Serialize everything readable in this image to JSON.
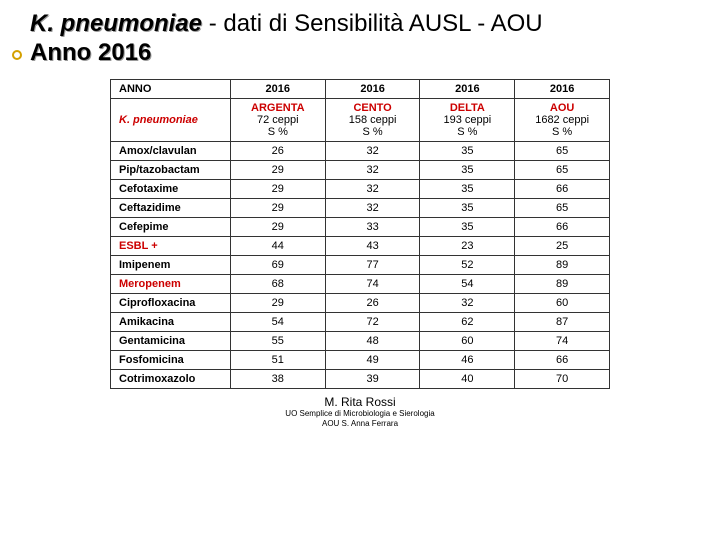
{
  "title": {
    "organism": "K. pneumoniae",
    "rest": " - dati di Sensibilità AUSL - AOU",
    "year_line": "Anno 2016"
  },
  "table": {
    "header": {
      "anno_label": "ANNO",
      "years": [
        "2016",
        "2016",
        "2016",
        "2016"
      ],
      "organism": "K. pneumoniae",
      "sites": [
        {
          "name": "ARGENTA",
          "ceppi": "72 ceppi",
          "s": "S %",
          "color": "#cc0000"
        },
        {
          "name": "CENTO",
          "ceppi": "158 ceppi",
          "s": "S %",
          "color": "#cc0000"
        },
        {
          "name": "DELTA",
          "ceppi": "193 ceppi",
          "s": "S %",
          "color": "#cc0000"
        },
        {
          "name": "AOU",
          "ceppi": "1682 ceppi",
          "s": "S %",
          "color": "#cc0000"
        }
      ]
    },
    "rows": [
      {
        "label": "Amox/clavulan",
        "color": "#000000",
        "values": [
          "26",
          "32",
          "35",
          "65"
        ]
      },
      {
        "label": "Pip/tazobactam",
        "color": "#000000",
        "values": [
          "29",
          "32",
          "35",
          "65"
        ]
      },
      {
        "label": "Cefotaxime",
        "color": "#000000",
        "values": [
          "29",
          "32",
          "35",
          "66"
        ]
      },
      {
        "label": "Ceftazidime",
        "color": "#000000",
        "values": [
          "29",
          "32",
          "35",
          "65"
        ]
      },
      {
        "label": "Cefepime",
        "color": "#000000",
        "values": [
          "29",
          "33",
          "35",
          "66"
        ]
      },
      {
        "label": "ESBL +",
        "color": "#cc0000",
        "values": [
          "44",
          "43",
          "23",
          "25"
        ]
      },
      {
        "label": "Imipenem",
        "color": "#000000",
        "values": [
          "69",
          "77",
          "52",
          "89"
        ]
      },
      {
        "label": "Meropenem",
        "color": "#cc0000",
        "values": [
          "68",
          "74",
          "54",
          "89"
        ]
      },
      {
        "label": "Ciprofloxacina",
        "color": "#000000",
        "values": [
          "29",
          "26",
          "32",
          "60"
        ]
      },
      {
        "label": "Amikacina",
        "color": "#000000",
        "values": [
          "54",
          "72",
          "62",
          "87"
        ]
      },
      {
        "label": "Gentamicina",
        "color": "#000000",
        "values": [
          "55",
          "48",
          "60",
          "74"
        ]
      },
      {
        "label": "Fosfomicina",
        "color": "#000000",
        "values": [
          "51",
          "49",
          "46",
          "66"
        ]
      },
      {
        "label": "Cotrimoxazolo",
        "color": "#000000",
        "values": [
          "38",
          "39",
          "40",
          "70"
        ]
      }
    ],
    "col_widths": [
      "120px",
      "95px",
      "95px",
      "95px",
      "95px"
    ]
  },
  "footer": {
    "author": "M. Rita Rossi",
    "line1": "UO Semplice di Microbiologia e Sierologia",
    "line2": "AOU S. Anna Ferrara"
  },
  "colors": {
    "site_name": "#cc0000",
    "organism_hdr": "#cc0000"
  }
}
